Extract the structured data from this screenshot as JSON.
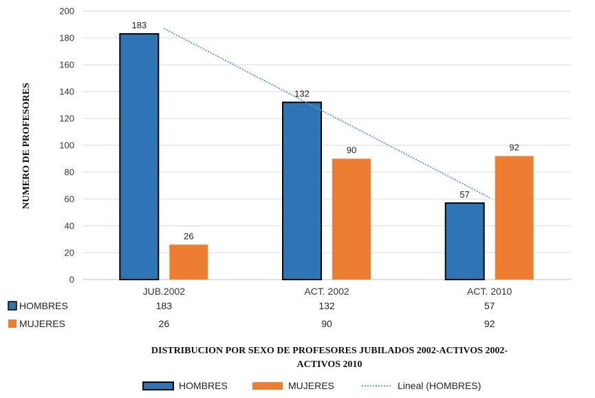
{
  "chart_data": {
    "type": "bar",
    "categories": [
      "JUB.2002",
      "ACT. 2002",
      "ACT. 2010"
    ],
    "series": [
      {
        "name": "HOMBRES",
        "values": [
          183,
          132,
          57
        ],
        "color": "#2E75B6",
        "stroke": "#000000"
      },
      {
        "name": "MUJERES",
        "values": [
          26,
          90,
          92
        ],
        "color": "#ED7D31"
      }
    ],
    "trendline": {
      "name": "Lineal (HOMBRES)",
      "series": "HOMBRES",
      "type": "linear",
      "color": "#5B9BD5",
      "style": "dotted"
    },
    "ylim": [
      0,
      200
    ],
    "yticks": [
      0,
      20,
      40,
      60,
      80,
      100,
      120,
      140,
      160,
      180,
      200
    ],
    "ylabel": "NUMERO DE PROFESORES",
    "xlabel_lines": [
      "DISTRIBUCION POR SEXO DE  PROFESORES  JUBILADOS 2002-ACTIVOS 2002-",
      "ACTIVOS 2010"
    ],
    "data_table": true,
    "grid": true,
    "legend": "bottom"
  }
}
